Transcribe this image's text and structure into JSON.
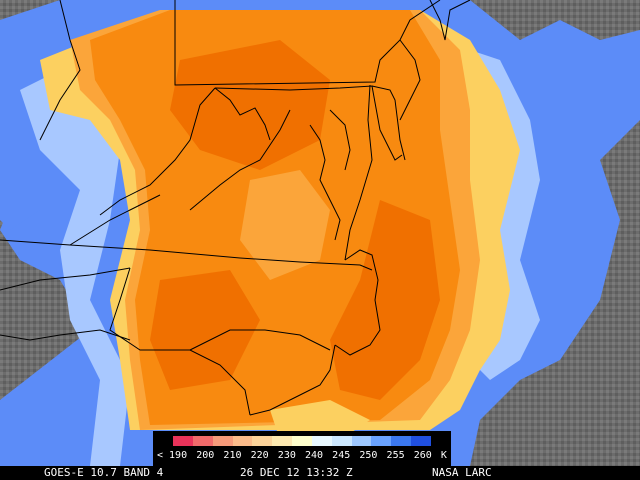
{
  "footer": {
    "satellite_band": "GOES-E 10.7 BAND 4",
    "datetime": "26 DEC 12 13:32 Z",
    "source": "NASA LARC"
  },
  "legend": {
    "labels": [
      "< 190",
      "200",
      "210",
      "220",
      "230",
      "240",
      "245",
      "250",
      "255",
      "260",
      "K"
    ],
    "colors": [
      "#e8335a",
      "#f06a6a",
      "#f59a7a",
      "#fabb8a",
      "#fbd39a",
      "#fde9b0",
      "#ffffcc",
      "#e8f8ff",
      "#cce8ff",
      "#9ec8ff",
      "#6aa3ff",
      "#3b78f0",
      "#2050e0"
    ]
  },
  "palette": {
    "cloud_orange_dark": "#f07000",
    "cloud_orange": "#f88a10",
    "cloud_light_orange": "#fba53a",
    "cloud_yellow": "#fcd060",
    "cloud_blue": "#5c8cf8",
    "cloud_light_blue": "#a8c8ff",
    "background_gray": "#6e6e6e",
    "border_lines": "#000000"
  }
}
